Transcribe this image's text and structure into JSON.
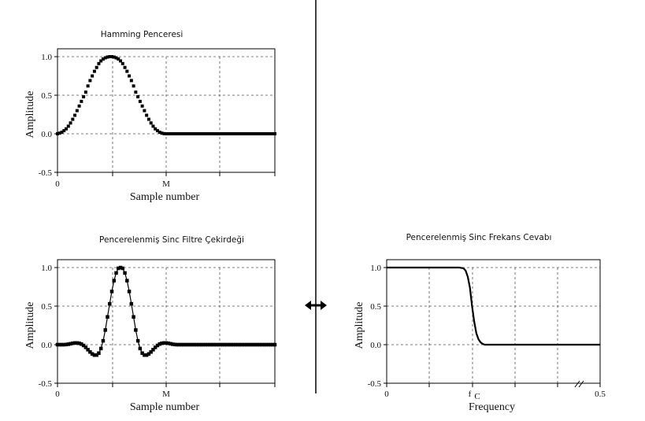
{
  "chart_data": [
    {
      "type": "scatter",
      "title": "Hamming Penceresi",
      "xlabel": "Sample number",
      "ylabel": "Amplitude",
      "ylim": [
        -0.5,
        1.0
      ],
      "xlim": [
        0,
        200
      ],
      "x_tick_labels": [
        {
          "x": 0,
          "label": "0"
        },
        {
          "x": 100,
          "label": "M"
        }
      ],
      "y_ticks": [
        {
          "y": 1.0,
          "label": "1.0"
        },
        {
          "y": 0.5,
          "label": "0.5"
        },
        {
          "y": 0.0,
          "label": "0.0"
        },
        {
          "y": -0.5,
          "label": "-0.5"
        }
      ],
      "grid": true,
      "series": [
        {
          "points": [
            [
              0,
              0.0
            ],
            [
              2,
              0.008
            ],
            [
              4,
              0.02
            ],
            [
              6,
              0.04
            ],
            [
              8,
              0.064
            ],
            [
              10,
              0.098
            ],
            [
              12,
              0.14
            ],
            [
              14,
              0.188
            ],
            [
              16,
              0.24
            ],
            [
              18,
              0.3
            ],
            [
              20,
              0.36
            ],
            [
              22,
              0.42
            ],
            [
              24,
              0.48
            ],
            [
              26,
              0.54
            ],
            [
              28,
              0.62
            ],
            [
              30,
              0.69
            ],
            [
              32,
              0.75
            ],
            [
              34,
              0.81
            ],
            [
              36,
              0.86
            ],
            [
              38,
              0.91
            ],
            [
              40,
              0.945
            ],
            [
              42,
              0.97
            ],
            [
              44,
              0.985
            ],
            [
              46,
              0.995
            ],
            [
              48,
              1.0
            ],
            [
              50,
              1.0
            ],
            [
              52,
              0.995
            ],
            [
              54,
              0.985
            ],
            [
              56,
              0.97
            ],
            [
              58,
              0.945
            ],
            [
              60,
              0.91
            ],
            [
              62,
              0.86
            ],
            [
              64,
              0.81
            ],
            [
              66,
              0.75
            ],
            [
              68,
              0.69
            ],
            [
              70,
              0.62
            ],
            [
              72,
              0.54
            ],
            [
              74,
              0.48
            ],
            [
              76,
              0.42
            ],
            [
              78,
              0.36
            ],
            [
              80,
              0.3
            ],
            [
              82,
              0.24
            ],
            [
              84,
              0.188
            ],
            [
              86,
              0.14
            ],
            [
              88,
              0.098
            ],
            [
              90,
              0.064
            ],
            [
              92,
              0.04
            ],
            [
              94,
              0.02
            ],
            [
              96,
              0.008
            ],
            [
              98,
              0.002
            ],
            [
              100,
              0.0
            ],
            [
              102,
              0.0
            ],
            [
              104,
              0.0
            ],
            [
              106,
              0.0
            ],
            [
              108,
              0.0
            ],
            [
              110,
              0.0
            ],
            [
              112,
              0.0
            ],
            [
              114,
              0.0
            ],
            [
              116,
              0.0
            ],
            [
              118,
              0.0
            ],
            [
              120,
              0.0
            ],
            [
              122,
              0.0
            ],
            [
              124,
              0.0
            ],
            [
              126,
              0.0
            ],
            [
              128,
              0.0
            ],
            [
              130,
              0.0
            ],
            [
              132,
              0.0
            ],
            [
              134,
              0.0
            ],
            [
              136,
              0.0
            ],
            [
              138,
              0.0
            ],
            [
              140,
              0.0
            ],
            [
              142,
              0.0
            ],
            [
              144,
              0.0
            ],
            [
              146,
              0.0
            ],
            [
              148,
              0.0
            ],
            [
              150,
              0.0
            ],
            [
              152,
              0.0
            ],
            [
              154,
              0.0
            ],
            [
              156,
              0.0
            ],
            [
              158,
              0.0
            ],
            [
              160,
              0.0
            ],
            [
              162,
              0.0
            ],
            [
              164,
              0.0
            ],
            [
              166,
              0.0
            ],
            [
              168,
              0.0
            ],
            [
              170,
              0.0
            ],
            [
              172,
              0.0
            ],
            [
              174,
              0.0
            ],
            [
              176,
              0.0
            ],
            [
              178,
              0.0
            ],
            [
              180,
              0.0
            ],
            [
              182,
              0.0
            ],
            [
              184,
              0.0
            ],
            [
              186,
              0.0
            ],
            [
              188,
              0.0
            ],
            [
              190,
              0.0
            ],
            [
              192,
              0.0
            ],
            [
              194,
              0.0
            ],
            [
              196,
              0.0
            ],
            [
              198,
              0.0
            ],
            [
              200,
              0.0
            ]
          ]
        }
      ]
    },
    {
      "type": "scatter",
      "title": "Pencerelenmiş Sinc Filtre Çekirdeği",
      "xlabel": "Sample number",
      "ylabel": "Amplitude",
      "ylim": [
        -0.5,
        1.0
      ],
      "xlim": [
        0,
        200
      ],
      "x_tick_labels": [
        {
          "x": 0,
          "label": "0"
        },
        {
          "x": 100,
          "label": "M"
        }
      ],
      "y_ticks": [
        {
          "y": 1.0,
          "label": "1.0"
        },
        {
          "y": 0.5,
          "label": "0.5"
        },
        {
          "y": 0.0,
          "label": "0.0"
        },
        {
          "y": -0.5,
          "label": "-0.5"
        }
      ],
      "grid": true,
      "series": [
        {
          "points": [
            [
              0,
              0.0
            ],
            [
              2,
              0.0
            ],
            [
              4,
              0.0
            ],
            [
              6,
              0.0
            ],
            [
              8,
              0.002
            ],
            [
              10,
              0.006
            ],
            [
              12,
              0.012
            ],
            [
              14,
              0.018
            ],
            [
              16,
              0.022
            ],
            [
              18,
              0.022
            ],
            [
              20,
              0.018
            ],
            [
              22,
              0.008
            ],
            [
              24,
              -0.01
            ],
            [
              26,
              -0.035
            ],
            [
              28,
              -0.065
            ],
            [
              30,
              -0.095
            ],
            [
              32,
              -0.12
            ],
            [
              34,
              -0.135
            ],
            [
              36,
              -0.135
            ],
            [
              38,
              -0.11
            ],
            [
              40,
              -0.05
            ],
            [
              42,
              0.05
            ],
            [
              44,
              0.19
            ],
            [
              46,
              0.36
            ],
            [
              48,
              0.53
            ],
            [
              50,
              0.69
            ],
            [
              52,
              0.83
            ],
            [
              54,
              0.93
            ],
            [
              56,
              0.99
            ],
            [
              58,
              1.0
            ],
            [
              60,
              0.99
            ],
            [
              62,
              0.93
            ],
            [
              64,
              0.83
            ],
            [
              66,
              0.69
            ],
            [
              68,
              0.53
            ],
            [
              70,
              0.36
            ],
            [
              72,
              0.19
            ],
            [
              74,
              0.05
            ],
            [
              76,
              -0.05
            ],
            [
              78,
              -0.11
            ],
            [
              80,
              -0.135
            ],
            [
              82,
              -0.135
            ],
            [
              84,
              -0.12
            ],
            [
              86,
              -0.095
            ],
            [
              88,
              -0.065
            ],
            [
              90,
              -0.035
            ],
            [
              92,
              -0.01
            ],
            [
              94,
              0.008
            ],
            [
              96,
              0.018
            ],
            [
              98,
              0.022
            ],
            [
              100,
              0.022
            ],
            [
              102,
              0.018
            ],
            [
              104,
              0.012
            ],
            [
              106,
              0.006
            ],
            [
              108,
              0.002
            ],
            [
              110,
              0.0
            ],
            [
              112,
              0.0
            ],
            [
              114,
              0.0
            ],
            [
              116,
              0.0
            ],
            [
              118,
              0.0
            ],
            [
              120,
              0.0
            ],
            [
              122,
              0.0
            ],
            [
              124,
              0.0
            ],
            [
              126,
              0.0
            ],
            [
              128,
              0.0
            ],
            [
              130,
              0.0
            ],
            [
              132,
              0.0
            ],
            [
              134,
              0.0
            ],
            [
              136,
              0.0
            ],
            [
              138,
              0.0
            ],
            [
              140,
              0.0
            ],
            [
              142,
              0.0
            ],
            [
              144,
              0.0
            ],
            [
              146,
              0.0
            ],
            [
              148,
              0.0
            ],
            [
              150,
              0.0
            ],
            [
              152,
              0.0
            ],
            [
              154,
              0.0
            ],
            [
              156,
              0.0
            ],
            [
              158,
              0.0
            ],
            [
              160,
              0.0
            ],
            [
              162,
              0.0
            ],
            [
              164,
              0.0
            ],
            [
              166,
              0.0
            ],
            [
              168,
              0.0
            ],
            [
              170,
              0.0
            ],
            [
              172,
              0.0
            ],
            [
              174,
              0.0
            ],
            [
              176,
              0.0
            ],
            [
              178,
              0.0
            ],
            [
              180,
              0.0
            ],
            [
              182,
              0.0
            ],
            [
              184,
              0.0
            ],
            [
              186,
              0.0
            ],
            [
              188,
              0.0
            ],
            [
              190,
              0.0
            ],
            [
              192,
              0.0
            ],
            [
              194,
              0.0
            ],
            [
              196,
              0.0
            ],
            [
              198,
              0.0
            ],
            [
              200,
              0.0
            ]
          ]
        }
      ]
    },
    {
      "type": "line",
      "title": "Pencerelenmiş Sinc Frekans Cevabı",
      "xlabel": "Frequency",
      "ylabel": "Amplitude",
      "ylim": [
        -0.5,
        1.0
      ],
      "xlim": [
        0,
        0.5
      ],
      "x_tick_labels": [
        {
          "x": 0,
          "label": "0"
        },
        {
          "x": 0.5,
          "label": "0.5"
        }
      ],
      "fc_label": {
        "main": "f",
        "sub": "C",
        "x": 0.2
      },
      "y_ticks": [
        {
          "y": 1.0,
          "label": "1.0"
        },
        {
          "y": 0.5,
          "label": "0.5"
        },
        {
          "y": 0.0,
          "label": "0.0"
        },
        {
          "y": -0.5,
          "label": "-0.5"
        }
      ],
      "grid": true,
      "series": [
        {
          "points": [
            [
              0,
              1.0
            ],
            [
              0.17,
              1.0
            ],
            [
              0.18,
              0.99
            ],
            [
              0.185,
              0.96
            ],
            [
              0.19,
              0.88
            ],
            [
              0.195,
              0.74
            ],
            [
              0.2,
              0.5
            ],
            [
              0.205,
              0.3
            ],
            [
              0.21,
              0.15
            ],
            [
              0.215,
              0.07
            ],
            [
              0.22,
              0.03
            ],
            [
              0.225,
              0.01
            ],
            [
              0.23,
              0.0
            ],
            [
              0.5,
              0.0
            ]
          ]
        }
      ]
    }
  ]
}
